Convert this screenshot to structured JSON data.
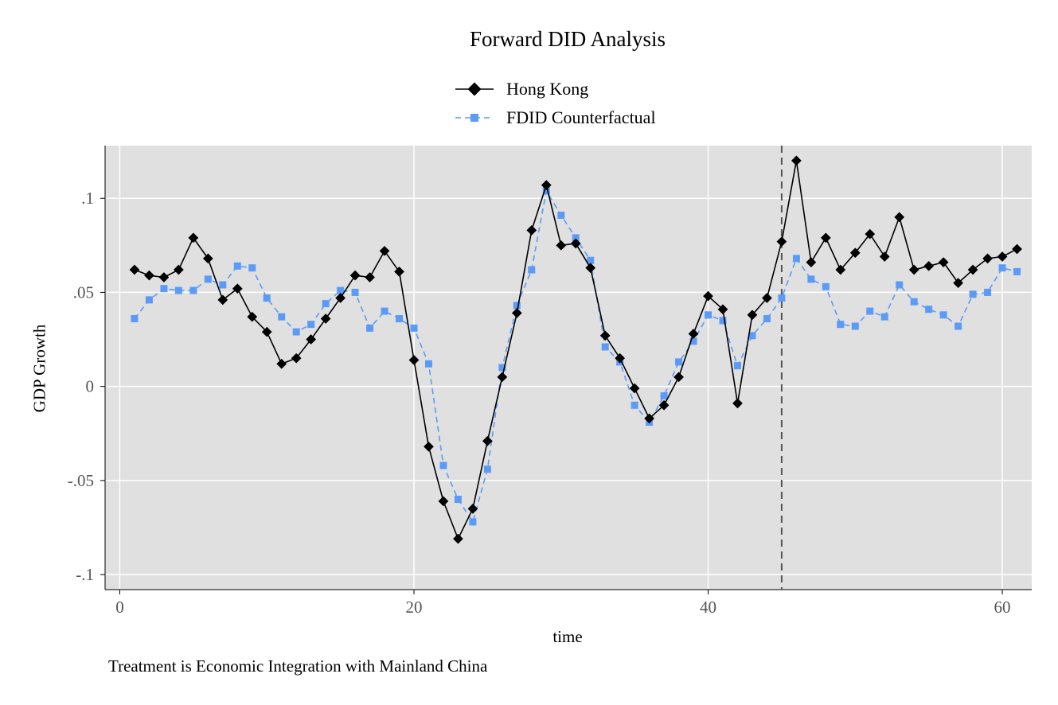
{
  "chart_data": {
    "type": "line",
    "title": "Forward DID Analysis",
    "xlabel": "time",
    "ylabel": "GDP Growth",
    "note": "Treatment is Economic Integration with Mainland China",
    "xlim": [
      -1,
      62
    ],
    "ylim": [
      -0.108,
      0.128
    ],
    "xticks": [
      0,
      20,
      40,
      60
    ],
    "xtick_labels": [
      "0",
      "20",
      "40",
      "60"
    ],
    "yticks": [
      0.1,
      0.05,
      0,
      -0.05,
      -0.1
    ],
    "ytick_labels": [
      ".1",
      ".05",
      "0",
      "-.05",
      "-.1"
    ],
    "grid": true,
    "legend_position": "top-center",
    "treatment_line_x": 45,
    "x": [
      1,
      2,
      3,
      4,
      5,
      6,
      7,
      8,
      9,
      10,
      11,
      12,
      13,
      14,
      15,
      16,
      17,
      18,
      19,
      20,
      21,
      22,
      23,
      24,
      25,
      26,
      27,
      28,
      29,
      30,
      31,
      32,
      33,
      34,
      35,
      36,
      37,
      38,
      39,
      40,
      41,
      42,
      43,
      44,
      45,
      46,
      47,
      48,
      49,
      50,
      51,
      52,
      53,
      54,
      55,
      56,
      57,
      58,
      59,
      60,
      61
    ],
    "series": [
      {
        "name": "Hong Kong",
        "color": "#000000",
        "marker": "diamond",
        "dash": "solid",
        "values": [
          0.062,
          0.059,
          0.058,
          0.062,
          0.079,
          0.068,
          0.046,
          0.052,
          0.037,
          0.029,
          0.012,
          0.015,
          0.025,
          0.036,
          0.047,
          0.059,
          0.058,
          0.072,
          0.061,
          0.014,
          -0.032,
          -0.061,
          -0.081,
          -0.065,
          -0.029,
          0.005,
          0.039,
          0.083,
          0.107,
          0.075,
          0.076,
          0.063,
          0.027,
          0.015,
          -0.001,
          -0.017,
          -0.01,
          0.005,
          0.028,
          0.048,
          0.041,
          -0.009,
          0.038,
          0.047,
          0.077,
          0.12,
          0.066,
          0.079,
          0.062,
          0.071,
          0.081,
          0.069,
          0.09,
          0.062,
          0.064,
          0.066,
          0.055,
          0.062,
          0.068,
          0.069,
          0.073
        ]
      },
      {
        "name": "FDID Counterfactual",
        "color": "#5b9bf7",
        "marker": "square",
        "dash": "dashed",
        "values": [
          0.036,
          0.046,
          0.052,
          0.051,
          0.051,
          0.057,
          0.054,
          0.064,
          0.063,
          0.047,
          0.037,
          0.029,
          0.033,
          0.044,
          0.051,
          0.05,
          0.031,
          0.04,
          0.036,
          0.031,
          0.012,
          -0.042,
          -0.06,
          -0.072,
          -0.044,
          0.01,
          0.043,
          0.062,
          0.104,
          0.091,
          0.079,
          0.067,
          0.021,
          0.013,
          -0.01,
          -0.019,
          -0.005,
          0.013,
          0.024,
          0.038,
          0.035,
          0.011,
          0.027,
          0.036,
          0.047,
          0.068,
          0.057,
          0.053,
          0.033,
          0.032,
          0.04,
          0.037,
          0.054,
          0.045,
          0.041,
          0.038,
          0.032,
          0.049,
          0.05,
          0.063,
          0.061
        ]
      }
    ]
  }
}
